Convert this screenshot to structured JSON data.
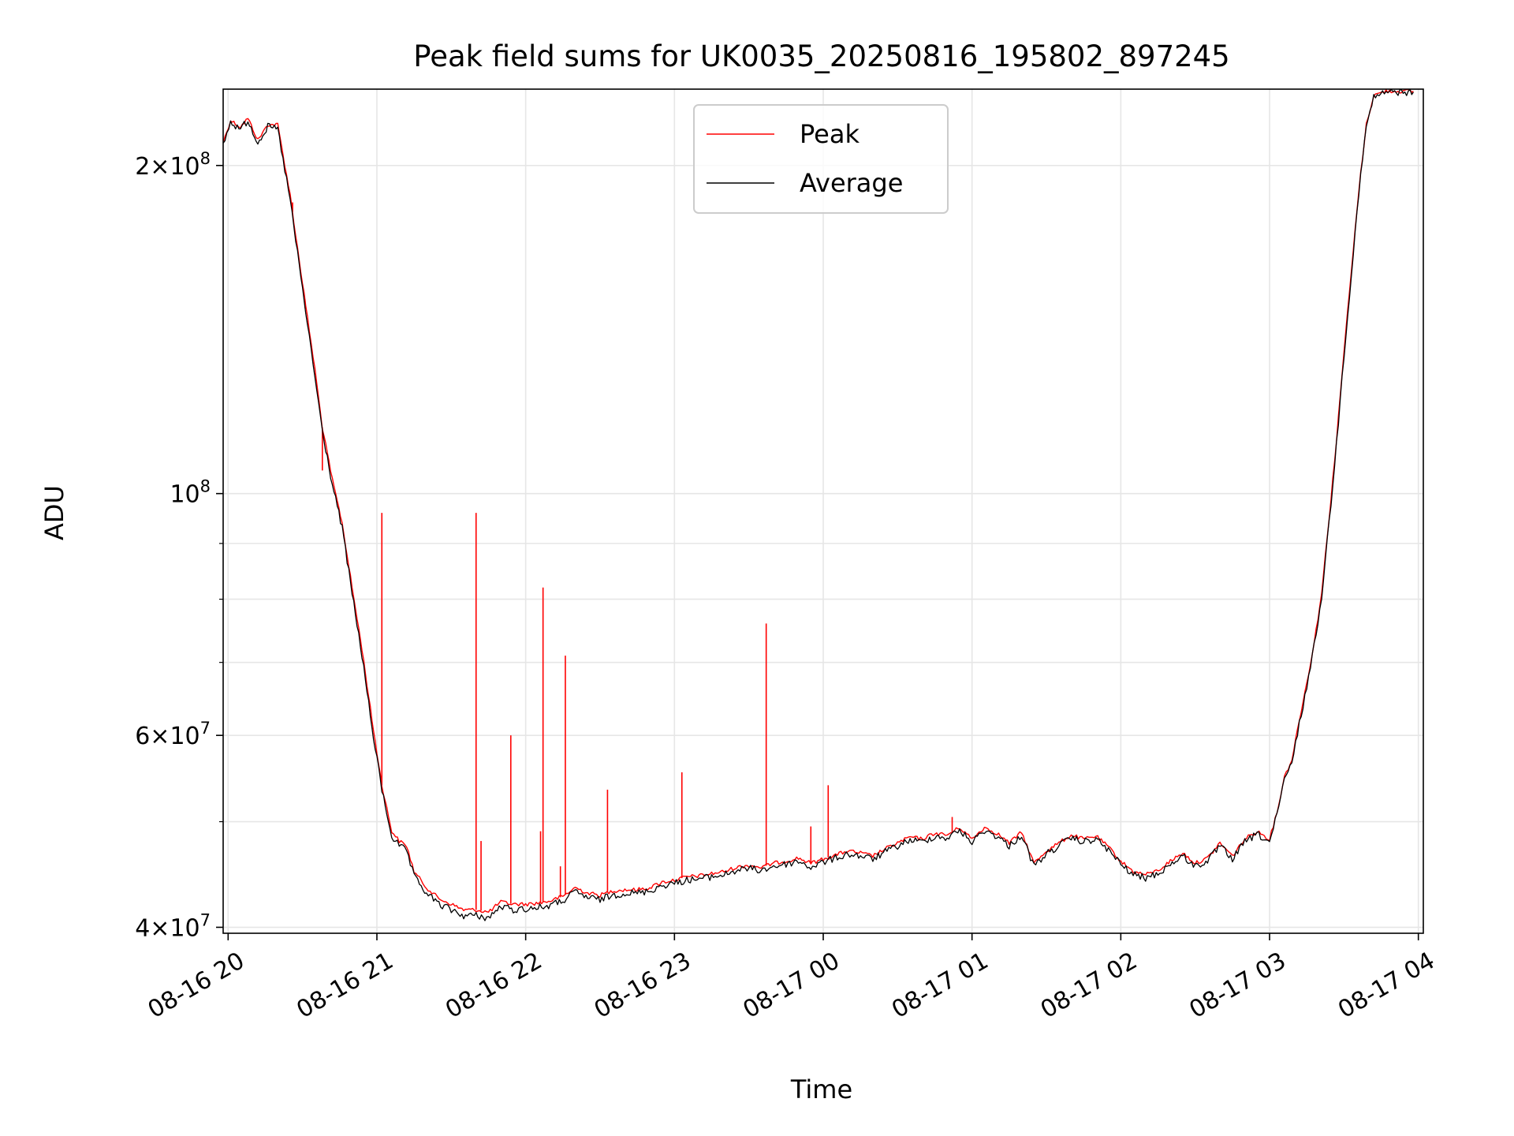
{
  "chart_data": {
    "type": "line",
    "title": "Peak field sums for UK0035_20250816_195802_897245",
    "xlabel": "Time",
    "ylabel": "ADU",
    "y_scale": "log",
    "grid": true,
    "legend_position": "top-center",
    "xlim": [
      "2025-08-16T19:58",
      "2025-08-17T04:02"
    ],
    "ylim": [
      39500000,
      235000000
    ],
    "x_ticks": [
      {
        "time": "2025-08-16T20:00",
        "label": "08-16 20"
      },
      {
        "time": "2025-08-16T21:00",
        "label": "08-16 21"
      },
      {
        "time": "2025-08-16T22:00",
        "label": "08-16 22"
      },
      {
        "time": "2025-08-16T23:00",
        "label": "08-16 23"
      },
      {
        "time": "2025-08-17T00:00",
        "label": "08-17 00"
      },
      {
        "time": "2025-08-17T01:00",
        "label": "08-17 01"
      },
      {
        "time": "2025-08-17T02:00",
        "label": "08-17 02"
      },
      {
        "time": "2025-08-17T03:00",
        "label": "08-17 03"
      },
      {
        "time": "2025-08-17T04:00",
        "label": "08-17 04"
      }
    ],
    "y_ticks_major": [
      {
        "value": 40000000,
        "mantissa": "4",
        "exponent": "7"
      },
      {
        "value": 60000000,
        "mantissa": "6",
        "exponent": "7"
      },
      {
        "value": 100000000,
        "mantissa": "10",
        "exponent": "8"
      },
      {
        "value": 200000000,
        "mantissa": "2",
        "exponent": "8"
      }
    ],
    "y_ticks_minor": [
      50000000,
      70000000,
      80000000,
      90000000
    ],
    "series": [
      {
        "name": "Peak",
        "color": "#ff0000",
        "points": [
          [
            "2025-08-16T19:58",
            210000000
          ],
          [
            "2025-08-16T20:01",
            220000000
          ],
          [
            "2025-08-16T20:05",
            217000000
          ],
          [
            "2025-08-16T20:08",
            221000000
          ],
          [
            "2025-08-16T20:12",
            211000000
          ],
          [
            "2025-08-16T20:16",
            218000000
          ],
          [
            "2025-08-16T20:20",
            218000000
          ],
          [
            "2025-08-16T20:25",
            188000000
          ],
          [
            "2025-08-16T20:28",
            168000000
          ],
          [
            "2025-08-16T20:32",
            145000000
          ],
          [
            "2025-08-16T20:35",
            130000000
          ],
          [
            "2025-08-16T20:38",
            115000000
          ],
          [
            "2025-08-16T20:42",
            103000000
          ],
          [
            "2025-08-16T20:46",
            94000000
          ],
          [
            "2025-08-16T20:50",
            82000000
          ],
          [
            "2025-08-16T20:54",
            72000000
          ],
          [
            "2025-08-16T20:58",
            62000000
          ],
          [
            "2025-08-16T21:02",
            54000000
          ],
          [
            "2025-08-16T21:06",
            49000000
          ],
          [
            "2025-08-16T21:09",
            48000000
          ],
          [
            "2025-08-16T21:12",
            47500000
          ],
          [
            "2025-08-16T21:15",
            45000000
          ],
          [
            "2025-08-16T21:20",
            43500000
          ],
          [
            "2025-08-16T21:25",
            42500000
          ],
          [
            "2025-08-16T21:30",
            42000000
          ],
          [
            "2025-08-16T21:35",
            41500000
          ],
          [
            "2025-08-16T21:40",
            41500000
          ],
          [
            "2025-08-16T21:45",
            41300000
          ],
          [
            "2025-08-16T21:50",
            42200000
          ],
          [
            "2025-08-16T21:55",
            42000000
          ],
          [
            "2025-08-16T22:00",
            42000000
          ],
          [
            "2025-08-16T22:05",
            42100000
          ],
          [
            "2025-08-16T22:10",
            42300000
          ],
          [
            "2025-08-16T22:15",
            42700000
          ],
          [
            "2025-08-16T22:20",
            43500000
          ],
          [
            "2025-08-16T22:25",
            43000000
          ],
          [
            "2025-08-16T22:30",
            42800000
          ],
          [
            "2025-08-16T22:35",
            43200000
          ],
          [
            "2025-08-16T22:40",
            43300000
          ],
          [
            "2025-08-16T22:45",
            43300000
          ],
          [
            "2025-08-16T22:50",
            43500000
          ],
          [
            "2025-08-16T22:55",
            44000000
          ],
          [
            "2025-08-16T23:00",
            44200000
          ],
          [
            "2025-08-16T23:05",
            44500000
          ],
          [
            "2025-08-16T23:10",
            44600000
          ],
          [
            "2025-08-16T23:15",
            44800000
          ],
          [
            "2025-08-16T23:20",
            45000000
          ],
          [
            "2025-08-16T23:25",
            45400000
          ],
          [
            "2025-08-16T23:30",
            45600000
          ],
          [
            "2025-08-16T23:35",
            45400000
          ],
          [
            "2025-08-16T23:40",
            45800000
          ],
          [
            "2025-08-16T23:45",
            46000000
          ],
          [
            "2025-08-16T23:50",
            46300000
          ],
          [
            "2025-08-16T23:55",
            45800000
          ],
          [
            "2025-08-17T00:00",
            46200000
          ],
          [
            "2025-08-17T00:05",
            46600000
          ],
          [
            "2025-08-17T00:10",
            47000000
          ],
          [
            "2025-08-17T00:15",
            46800000
          ],
          [
            "2025-08-17T00:20",
            46500000
          ],
          [
            "2025-08-17T00:25",
            47200000
          ],
          [
            "2025-08-17T00:30",
            47800000
          ],
          [
            "2025-08-17T00:35",
            48400000
          ],
          [
            "2025-08-17T00:40",
            48200000
          ],
          [
            "2025-08-17T00:45",
            48800000
          ],
          [
            "2025-08-17T00:50",
            48600000
          ],
          [
            "2025-08-17T00:55",
            49400000
          ],
          [
            "2025-08-17T01:00",
            48200000
          ],
          [
            "2025-08-17T01:05",
            49400000
          ],
          [
            "2025-08-17T01:10",
            48800000
          ],
          [
            "2025-08-17T01:15",
            47800000
          ],
          [
            "2025-08-17T01:20",
            48900000
          ],
          [
            "2025-08-17T01:25",
            45800000
          ],
          [
            "2025-08-17T01:30",
            47000000
          ],
          [
            "2025-08-17T01:35",
            47800000
          ],
          [
            "2025-08-17T01:40",
            48600000
          ],
          [
            "2025-08-17T01:45",
            48200000
          ],
          [
            "2025-08-17T01:50",
            48500000
          ],
          [
            "2025-08-17T01:55",
            47400000
          ],
          [
            "2025-08-17T02:00",
            46000000
          ],
          [
            "2025-08-17T02:05",
            45000000
          ],
          [
            "2025-08-17T02:10",
            44700000
          ],
          [
            "2025-08-17T02:15",
            45100000
          ],
          [
            "2025-08-17T02:20",
            46000000
          ],
          [
            "2025-08-17T02:25",
            46800000
          ],
          [
            "2025-08-17T02:30",
            45800000
          ],
          [
            "2025-08-17T02:35",
            46300000
          ],
          [
            "2025-08-17T02:40",
            47800000
          ],
          [
            "2025-08-17T02:45",
            46500000
          ],
          [
            "2025-08-17T02:50",
            48200000
          ],
          [
            "2025-08-17T02:55",
            49000000
          ],
          [
            "2025-08-17T03:00",
            48200000
          ],
          [
            "2025-08-17T03:03",
            51000000
          ],
          [
            "2025-08-17T03:06",
            55000000
          ],
          [
            "2025-08-17T03:09",
            57000000
          ],
          [
            "2025-08-17T03:12",
            62000000
          ],
          [
            "2025-08-17T03:15",
            67000000
          ],
          [
            "2025-08-17T03:18",
            73000000
          ],
          [
            "2025-08-17T03:21",
            81000000
          ],
          [
            "2025-08-17T03:24",
            95000000
          ],
          [
            "2025-08-17T03:27",
            112000000
          ],
          [
            "2025-08-17T03:30",
            135000000
          ],
          [
            "2025-08-17T03:33",
            160000000
          ],
          [
            "2025-08-17T03:36",
            190000000
          ],
          [
            "2025-08-17T03:39",
            218000000
          ],
          [
            "2025-08-17T03:42",
            232000000
          ],
          [
            "2025-08-17T03:47",
            234000000
          ],
          [
            "2025-08-17T03:58",
            234000000
          ]
        ],
        "spikes": [
          [
            "2025-08-16T20:26",
            185000000
          ],
          [
            "2025-08-16T20:31",
            148000000
          ],
          [
            "2025-08-16T20:38",
            105000000
          ],
          [
            "2025-08-16T21:02",
            96000000
          ],
          [
            "2025-08-16T21:40",
            96000000
          ],
          [
            "2025-08-16T21:42",
            48000000
          ],
          [
            "2025-08-16T21:54",
            60000000
          ],
          [
            "2025-08-16T22:06",
            49000000
          ],
          [
            "2025-08-16T22:07",
            82000000
          ],
          [
            "2025-08-16T22:14",
            45500000
          ],
          [
            "2025-08-16T22:16",
            71000000
          ],
          [
            "2025-08-16T22:33",
            53500000
          ],
          [
            "2025-08-16T23:03",
            55500000
          ],
          [
            "2025-08-16T23:37",
            76000000
          ],
          [
            "2025-08-16T23:55",
            49500000
          ],
          [
            "2025-08-17T00:02",
            54000000
          ],
          [
            "2025-08-17T00:52",
            50500000
          ]
        ]
      },
      {
        "name": "Average",
        "color": "#000000",
        "points": [
          [
            "2025-08-16T19:58",
            209000000
          ],
          [
            "2025-08-16T20:01",
            219000000
          ],
          [
            "2025-08-16T20:05",
            216000000
          ],
          [
            "2025-08-16T20:08",
            220000000
          ],
          [
            "2025-08-16T20:12",
            210000000
          ],
          [
            "2025-08-16T20:16",
            217000000
          ],
          [
            "2025-08-16T20:20",
            216000000
          ],
          [
            "2025-08-16T20:25",
            186000000
          ],
          [
            "2025-08-16T20:28",
            166000000
          ],
          [
            "2025-08-16T20:32",
            143000000
          ],
          [
            "2025-08-16T20:35",
            128000000
          ],
          [
            "2025-08-16T20:38",
            114000000
          ],
          [
            "2025-08-16T20:42",
            102000000
          ],
          [
            "2025-08-16T20:46",
            93000000
          ],
          [
            "2025-08-16T20:50",
            81000000
          ],
          [
            "2025-08-16T20:54",
            71000000
          ],
          [
            "2025-08-16T20:58",
            61000000
          ],
          [
            "2025-08-16T21:02",
            53500000
          ],
          [
            "2025-08-16T21:06",
            48500000
          ],
          [
            "2025-08-16T21:09",
            47500000
          ],
          [
            "2025-08-16T21:12",
            47000000
          ],
          [
            "2025-08-16T21:15",
            44500000
          ],
          [
            "2025-08-16T21:20",
            43000000
          ],
          [
            "2025-08-16T21:25",
            42000000
          ],
          [
            "2025-08-16T21:30",
            41500000
          ],
          [
            "2025-08-16T21:35",
            41000000
          ],
          [
            "2025-08-16T21:40",
            41000000
          ],
          [
            "2025-08-16T21:45",
            40800000
          ],
          [
            "2025-08-16T21:50",
            41800000
          ],
          [
            "2025-08-16T21:55",
            41500000
          ],
          [
            "2025-08-16T22:00",
            41600000
          ],
          [
            "2025-08-16T22:05",
            41700000
          ],
          [
            "2025-08-16T22:10",
            41900000
          ],
          [
            "2025-08-16T22:15",
            42300000
          ],
          [
            "2025-08-16T22:20",
            43100000
          ],
          [
            "2025-08-16T22:25",
            42600000
          ],
          [
            "2025-08-16T22:30",
            42400000
          ],
          [
            "2025-08-16T22:35",
            42800000
          ],
          [
            "2025-08-16T22:40",
            43000000
          ],
          [
            "2025-08-16T22:45",
            43000000
          ],
          [
            "2025-08-16T22:50",
            43200000
          ],
          [
            "2025-08-16T22:55",
            43700000
          ],
          [
            "2025-08-16T23:00",
            43900000
          ],
          [
            "2025-08-16T23:05",
            44200000
          ],
          [
            "2025-08-16T23:10",
            44300000
          ],
          [
            "2025-08-16T23:15",
            44500000
          ],
          [
            "2025-08-16T23:20",
            44700000
          ],
          [
            "2025-08-16T23:25",
            45100000
          ],
          [
            "2025-08-16T23:30",
            45300000
          ],
          [
            "2025-08-16T23:35",
            45100000
          ],
          [
            "2025-08-16T23:40",
            45500000
          ],
          [
            "2025-08-16T23:45",
            45700000
          ],
          [
            "2025-08-16T23:50",
            46000000
          ],
          [
            "2025-08-16T23:55",
            45400000
          ],
          [
            "2025-08-17T00:00",
            45900000
          ],
          [
            "2025-08-17T00:05",
            46300000
          ],
          [
            "2025-08-17T00:10",
            46700000
          ],
          [
            "2025-08-17T00:15",
            46500000
          ],
          [
            "2025-08-17T00:20",
            46200000
          ],
          [
            "2025-08-17T00:25",
            46900000
          ],
          [
            "2025-08-17T00:30",
            47500000
          ],
          [
            "2025-08-17T00:35",
            48100000
          ],
          [
            "2025-08-17T00:40",
            47900000
          ],
          [
            "2025-08-17T00:45",
            48500000
          ],
          [
            "2025-08-17T00:50",
            48300000
          ],
          [
            "2025-08-17T00:55",
            49100000
          ],
          [
            "2025-08-17T01:00",
            47900000
          ],
          [
            "2025-08-17T01:05",
            49100000
          ],
          [
            "2025-08-17T01:10",
            48500000
          ],
          [
            "2025-08-17T01:15",
            47500000
          ],
          [
            "2025-08-17T01:20",
            48600000
          ],
          [
            "2025-08-17T01:25",
            45500000
          ],
          [
            "2025-08-17T01:30",
            46700000
          ],
          [
            "2025-08-17T01:35",
            47500000
          ],
          [
            "2025-08-17T01:40",
            48300000
          ],
          [
            "2025-08-17T01:45",
            47900000
          ],
          [
            "2025-08-17T01:50",
            48200000
          ],
          [
            "2025-08-17T01:55",
            47100000
          ],
          [
            "2025-08-17T02:00",
            45700000
          ],
          [
            "2025-08-17T02:05",
            44700000
          ],
          [
            "2025-08-17T02:10",
            44400000
          ],
          [
            "2025-08-17T02:15",
            44800000
          ],
          [
            "2025-08-17T02:20",
            45700000
          ],
          [
            "2025-08-17T02:25",
            46500000
          ],
          [
            "2025-08-17T02:30",
            45500000
          ],
          [
            "2025-08-17T02:35",
            46000000
          ],
          [
            "2025-08-17T02:40",
            47500000
          ],
          [
            "2025-08-17T02:45",
            46200000
          ],
          [
            "2025-08-17T02:50",
            47900000
          ],
          [
            "2025-08-17T02:55",
            48700000
          ],
          [
            "2025-08-17T03:00",
            47900000
          ],
          [
            "2025-08-17T03:03",
            50700000
          ],
          [
            "2025-08-17T03:06",
            54600000
          ],
          [
            "2025-08-17T03:09",
            56600000
          ],
          [
            "2025-08-17T03:12",
            61500000
          ],
          [
            "2025-08-17T03:15",
            66500000
          ],
          [
            "2025-08-17T03:18",
            72500000
          ],
          [
            "2025-08-17T03:21",
            80500000
          ],
          [
            "2025-08-17T03:24",
            94000000
          ],
          [
            "2025-08-17T03:27",
            111000000
          ],
          [
            "2025-08-17T03:30",
            134000000
          ],
          [
            "2025-08-17T03:33",
            159000000
          ],
          [
            "2025-08-17T03:36",
            189000000
          ],
          [
            "2025-08-17T03:39",
            217000000
          ],
          [
            "2025-08-17T03:42",
            231000000
          ],
          [
            "2025-08-17T03:47",
            233500000
          ],
          [
            "2025-08-17T03:58",
            233500000
          ]
        ]
      }
    ]
  }
}
